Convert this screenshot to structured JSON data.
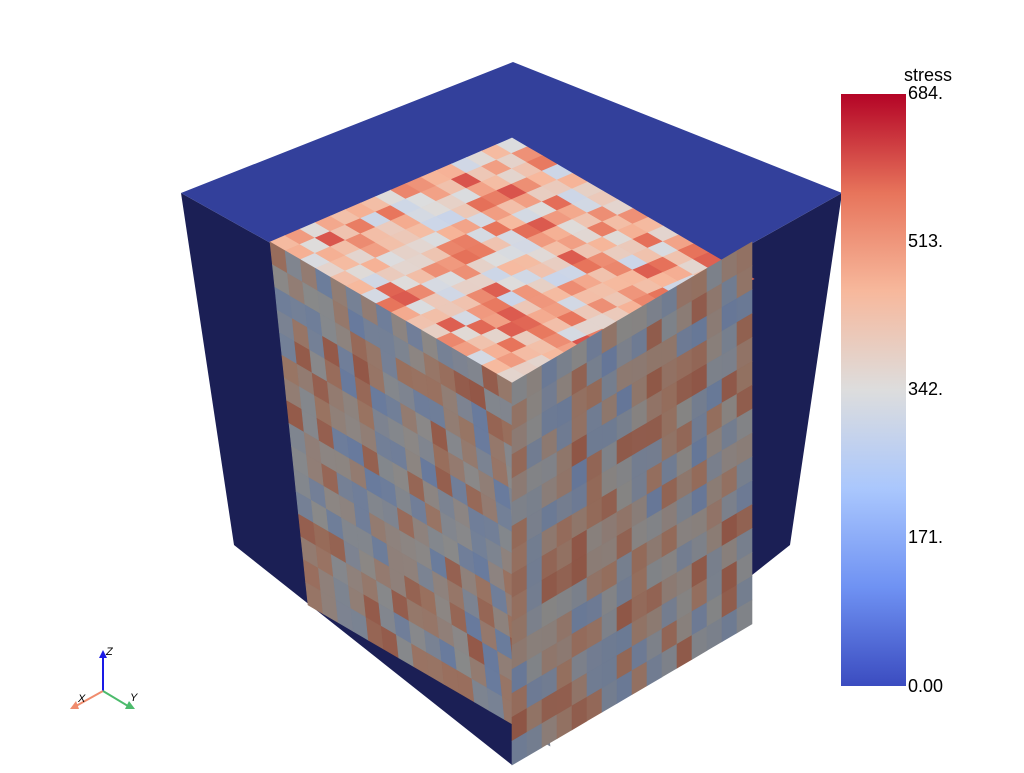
{
  "scalar_bar": {
    "title": "stress",
    "ticks": [
      "684.",
      "513.",
      "342.",
      "171.",
      "0.00"
    ],
    "range": [
      0,
      684
    ],
    "colormap": [
      "#3b4cc0",
      "#6f92f3",
      "#aac7fd",
      "#dddddd",
      "#f7b89c",
      "#e7745b",
      "#b40426"
    ]
  },
  "axes": {
    "x_label": "X",
    "y_label": "Y",
    "z_label": "Z",
    "x_color": "#f08c6e",
    "y_color": "#4cbb6c",
    "z_color": "#1a1ae6"
  },
  "scene": {
    "background": "#ffffff",
    "outer_top_color": "#33409b",
    "outer_side_color": "#1b1f55",
    "inner_top_base": "#e8b89c",
    "inner_side_base": "#6c6c70"
  }
}
